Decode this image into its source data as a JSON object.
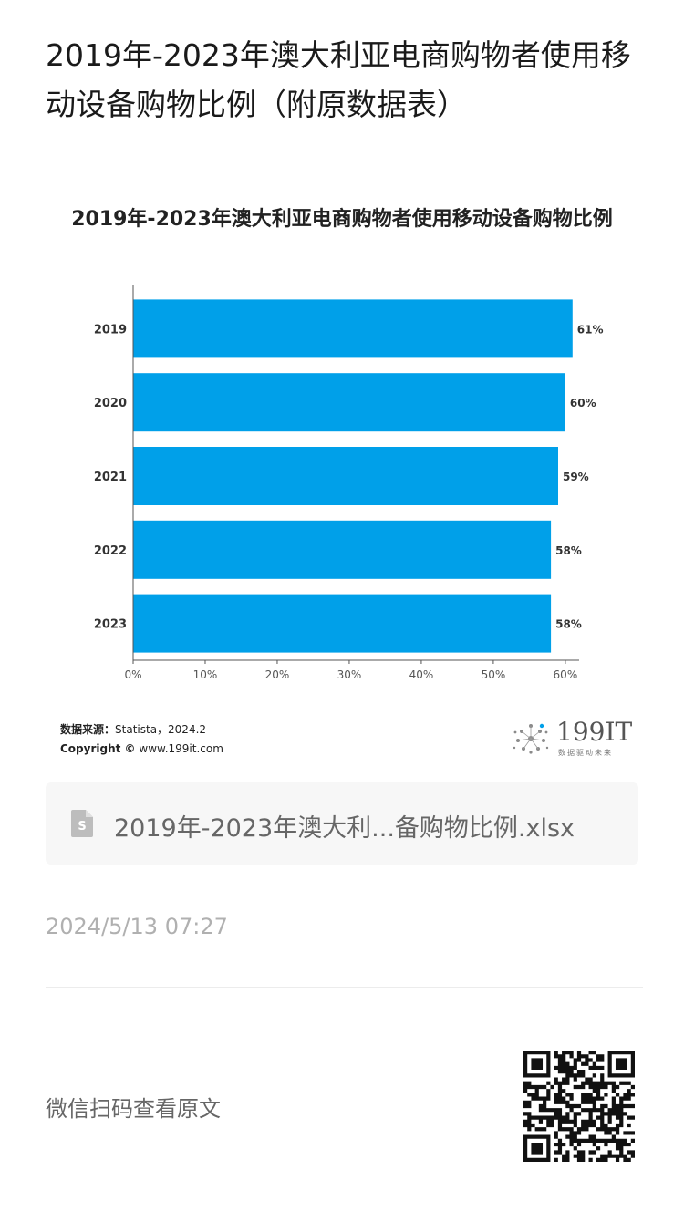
{
  "article": {
    "title": "2019年-2023年澳大利亚电商购物者使用移动设备购物比例（附原数据表）"
  },
  "chart_data": {
    "type": "bar",
    "orientation": "horizontal",
    "title": "2019年-2023年澳大利亚电商购物者使用移动设备购物比例",
    "categories": [
      "2019",
      "2020",
      "2021",
      "2022",
      "2023"
    ],
    "values": [
      61,
      60,
      59,
      58,
      58
    ],
    "value_labels": [
      "61%",
      "60%",
      "59%",
      "58%",
      "58%"
    ],
    "x_ticks": [
      "0%",
      "10%",
      "20%",
      "30%",
      "40%",
      "50%",
      "60%"
    ],
    "xlim": [
      0,
      60.9
    ],
    "xlabel": "",
    "ylabel": "",
    "grid": false,
    "bar_color": "#00a0e9"
  },
  "source": {
    "label": "数据来源：",
    "text": "Statista，2024.2",
    "copyright_label": "Copyright ©",
    "copyright_text": "www.199it.com"
  },
  "brand": {
    "name": "199IT",
    "tagline": "数据驱动未来"
  },
  "attachment": {
    "icon": "spreadsheet-file-icon",
    "filename": "2019年-2023年澳大利...备购物比例.xlsx"
  },
  "meta": {
    "timestamp": "2024/5/13 07:27"
  },
  "footer": {
    "scan_text": "微信扫码查看原文",
    "qr_icon": "qr-code-icon"
  }
}
